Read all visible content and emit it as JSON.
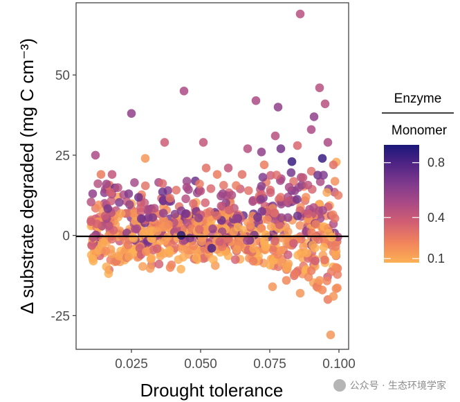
{
  "chart_data": {
    "type": "scatter",
    "title": "",
    "xlabel": "Drought tolerance",
    "ylabel": "Δ substrate degraded (mg C cm⁻³)",
    "xlim": [
      0.005,
      0.1035
    ],
    "ylim": [
      -35.5,
      72.5
    ],
    "x_ticks": [
      0.025,
      0.05,
      0.075,
      0.1
    ],
    "x_tick_labels": [
      "0.025",
      "0.050",
      "0.075",
      "0.100"
    ],
    "y_ticks": [
      -25,
      0,
      25,
      50
    ],
    "y_tick_labels": [
      "-25",
      "0",
      "25",
      "50"
    ],
    "hline": 0,
    "color_variable": "Enzyme Monomer",
    "legend": {
      "title_line1": "Enzyme",
      "title_line2": "Monomer",
      "ticks": [
        0.1,
        0.4,
        0.8
      ],
      "tick_labels": [
        "0.1",
        "0.4",
        "0.8"
      ],
      "placement": "right",
      "colors": [
        "#fcb054",
        "#f1845c",
        "#d25f72",
        "#ab4b85",
        "#7f3a8c",
        "#4f2485",
        "#19187a"
      ]
    },
    "highlight_points": [
      {
        "x": 0.086,
        "y": 69,
        "c": 0.45
      },
      {
        "x": 0.025,
        "y": 38,
        "c": 0.6
      },
      {
        "x": 0.044,
        "y": 45,
        "c": 0.5
      },
      {
        "x": 0.093,
        "y": 46,
        "c": 0.45
      },
      {
        "x": 0.07,
        "y": 42,
        "c": 0.5
      },
      {
        "x": 0.078,
        "y": 40,
        "c": 0.6
      },
      {
        "x": 0.095,
        "y": 41,
        "c": 0.45
      },
      {
        "x": 0.091,
        "y": 37,
        "c": 0.6
      },
      {
        "x": 0.012,
        "y": 25,
        "c": 0.5
      },
      {
        "x": 0.037,
        "y": 29,
        "c": 0.35
      },
      {
        "x": 0.051,
        "y": 29,
        "c": 0.4
      },
      {
        "x": 0.03,
        "y": 24,
        "c": 0.1
      },
      {
        "x": 0.077,
        "y": 31,
        "c": 0.45
      },
      {
        "x": 0.083,
        "y": 23,
        "c": 0.9
      },
      {
        "x": 0.079,
        "y": 27,
        "c": 0.7
      },
      {
        "x": 0.085,
        "y": 28,
        "c": 0.3
      },
      {
        "x": 0.094,
        "y": 24,
        "c": 0.9
      },
      {
        "x": 0.096,
        "y": 29,
        "c": 0.5
      },
      {
        "x": 0.067,
        "y": 27,
        "c": 0.45
      },
      {
        "x": 0.072,
        "y": 26,
        "c": 0.6
      },
      {
        "x": 0.073,
        "y": 22,
        "c": 0.2
      },
      {
        "x": 0.065,
        "y": 19,
        "c": 0.25
      },
      {
        "x": 0.018,
        "y": 19,
        "c": 0.4
      },
      {
        "x": 0.014,
        "y": 19,
        "c": 0.2
      },
      {
        "x": 0.016,
        "y": 16,
        "c": 0.55
      },
      {
        "x": 0.098,
        "y": 22,
        "c": 0.25
      },
      {
        "x": 0.011,
        "y": 13,
        "c": 0.6
      },
      {
        "x": 0.024,
        "y": 13,
        "c": 0.65
      },
      {
        "x": 0.045,
        "y": 15,
        "c": 0.5
      },
      {
        "x": 0.058,
        "y": 13,
        "c": 0.55
      },
      {
        "x": 0.052,
        "y": 21,
        "c": 0.25
      },
      {
        "x": 0.06,
        "y": 21,
        "c": 0.4
      },
      {
        "x": 0.056,
        "y": 19,
        "c": 0.2
      },
      {
        "x": 0.087,
        "y": 18,
        "c": 0.4
      },
      {
        "x": 0.09,
        "y": 33,
        "c": 0.5
      },
      {
        "x": 0.082,
        "y": 15,
        "c": 0.5
      },
      {
        "x": 0.043,
        "y": 0,
        "c": 0.95
      },
      {
        "x": 0.054,
        "y": -4,
        "c": 0.85
      },
      {
        "x": 0.039,
        "y": -10,
        "c": 0.15
      },
      {
        "x": 0.069,
        "y": -8,
        "c": 0.2
      },
      {
        "x": 0.076,
        "y": -16,
        "c": 0.1
      },
      {
        "x": 0.081,
        "y": -14,
        "c": 0.15
      },
      {
        "x": 0.084,
        "y": -12,
        "c": 0.2
      },
      {
        "x": 0.089,
        "y": -13,
        "c": 0.15
      },
      {
        "x": 0.092,
        "y": -16,
        "c": 0.2
      },
      {
        "x": 0.094,
        "y": -17,
        "c": 0.15
      },
      {
        "x": 0.096,
        "y": -20,
        "c": 0.2
      },
      {
        "x": 0.098,
        "y": -19,
        "c": 0.1
      },
      {
        "x": 0.097,
        "y": -31,
        "c": 0.1
      },
      {
        "x": 0.099,
        "y": -10,
        "c": 0.15
      },
      {
        "x": 0.086,
        "y": -18,
        "c": 0.1
      },
      {
        "x": 0.093,
        "y": -14,
        "c": 0.1
      },
      {
        "x": 0.09,
        "y": -11,
        "c": 0.2
      }
    ],
    "dense_cloud": {
      "note": "approx. 700 additional points clustered around y=0 (mostly -8 to +8) across x 0.01–0.1, widening above 0.08",
      "x_range": [
        0.01,
        0.1
      ],
      "y_center": 0,
      "y_spread": 4.5,
      "count": 700
    }
  },
  "watermark": "公众号 · 生态环境学家"
}
